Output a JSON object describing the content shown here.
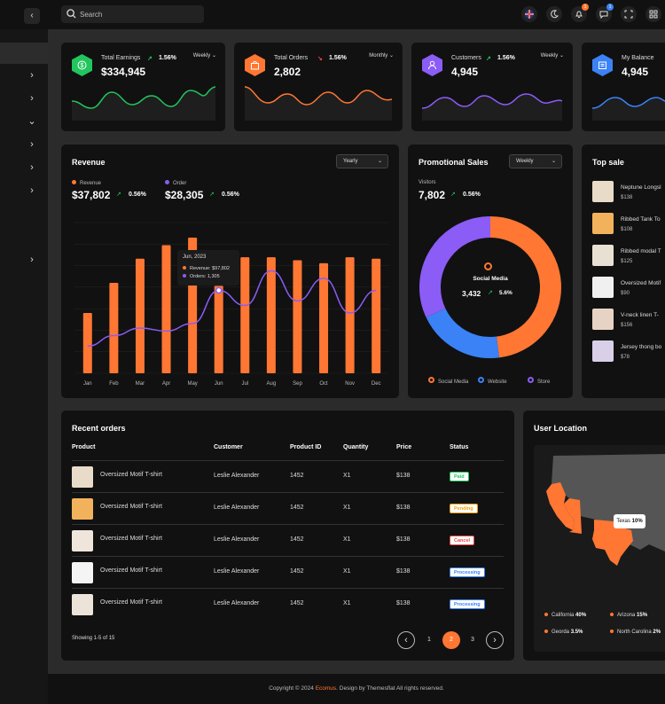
{
  "topbar": {
    "search_placeholder": "Search",
    "icons": [
      {
        "name": "flag-uk-icon",
        "badge": ""
      },
      {
        "name": "moon-icon",
        "badge": ""
      },
      {
        "name": "bell-icon",
        "badge": "1",
        "badge_color": "#ff7733"
      },
      {
        "name": "message-icon",
        "badge": "1",
        "badge_color": "#3b82f6"
      },
      {
        "name": "fullscreen-icon",
        "badge": ""
      },
      {
        "name": "grid-icon",
        "badge": ""
      }
    ]
  },
  "stats": [
    {
      "label": "Total Earnings",
      "value": "$334,945",
      "change": "1.56%",
      "trend": "up",
      "period": "Weekly",
      "color": "#22c55e",
      "icon": "dollar-icon"
    },
    {
      "label": "Total Orders",
      "value": "2,802",
      "change": "1.56%",
      "trend": "down",
      "period": "Monthly",
      "color": "#ff7733",
      "icon": "bag-icon"
    },
    {
      "label": "Customers",
      "value": "4,945",
      "change": "1.56%",
      "trend": "up",
      "period": "Weekly",
      "color": "#8b5cf6",
      "icon": "user-icon"
    },
    {
      "label": "My Balance",
      "value": "4,945",
      "color": "#3b82f6",
      "icon": "wallet-icon"
    }
  ],
  "revenue": {
    "title": "Revenue",
    "period": "Yearly",
    "revenue_label": "Revenue",
    "revenue_value": "$37,802",
    "revenue_change": "0.56%",
    "order_label": "Order",
    "order_value": "$28,305",
    "order_change": "0.56%",
    "tooltip_title": "Jun, 2023",
    "tooltip_revenue": "Revenue: $97,802",
    "tooltip_orders": "Orders: 1,305"
  },
  "chart_data": {
    "type": "bar",
    "categories": [
      "Jan",
      "Feb",
      "Mar",
      "Apr",
      "May",
      "Jun",
      "Jul",
      "Aug",
      "Sep",
      "Oct",
      "Nov",
      "Dec"
    ],
    "series": [
      {
        "type": "bar",
        "color": "#ff7733",
        "values": [
          40,
          60,
          76,
          85,
          90,
          58,
          77,
          77,
          75,
          73,
          77,
          76
        ]
      },
      {
        "type": "line",
        "color": "#8b5cf6",
        "values": [
          18,
          25,
          30,
          28,
          33,
          55,
          45,
          68,
          48,
          63,
          40,
          55
        ]
      }
    ],
    "ylim": [
      0,
      100
    ]
  },
  "promo": {
    "title": "Promotional Sales",
    "period": "Weekly",
    "visitors_label": "Visitors",
    "visitors_value": "7,802",
    "visitors_change": "0.56%",
    "center_label": "Social Media",
    "center_value": "3,432",
    "center_change": "5.6%",
    "legend": [
      "Social Media",
      "Website",
      "Store"
    ],
    "donut": [
      {
        "name": "Social Media",
        "value": 48,
        "color": "#ff7733"
      },
      {
        "name": "Website",
        "value": 20,
        "color": "#3b82f6"
      },
      {
        "name": "Store",
        "value": 32,
        "color": "#8b5cf6"
      }
    ]
  },
  "top_sale": {
    "title": "Top sale",
    "items": [
      {
        "name": "Neptune Longsl",
        "price": "$138"
      },
      {
        "name": "Ribbed Tank To",
        "price": "$108"
      },
      {
        "name": "Ribbed modal T",
        "price": "$125"
      },
      {
        "name": "Oversized Motif",
        "price": "$90"
      },
      {
        "name": "V-neck linen T-",
        "price": "$156"
      },
      {
        "name": "Jersey thong bo",
        "price": "$78"
      }
    ]
  },
  "orders": {
    "title": "Recent orders",
    "columns": [
      "Product",
      "Customer",
      "Product ID",
      "Quantity",
      "Price",
      "Status"
    ],
    "rows": [
      {
        "product": "Oversized Motif T-shirt",
        "customer": "Leslie Alexander",
        "id": "1452",
        "qty": "X1",
        "price": "$138",
        "status": "Paid",
        "status_color": "#22c55e"
      },
      {
        "product": "Oversized Motif T-shirt",
        "customer": "Leslie Alexander",
        "id": "1452",
        "qty": "X1",
        "price": "$138",
        "status": "Pending",
        "status_color": "#f59e0b"
      },
      {
        "product": "Oversized Motif T-shirt",
        "customer": "Leslie Alexander",
        "id": "1452",
        "qty": "X1",
        "price": "$138",
        "status": "Cancel",
        "status_color": "#ef4444"
      },
      {
        "product": "Oversized Motif T-shirt",
        "customer": "Leslie Alexander",
        "id": "1452",
        "qty": "X1",
        "price": "$138",
        "status": "Processing",
        "status_color": "#3b82f6"
      },
      {
        "product": "Oversized Motif T-shirt",
        "customer": "Leslie Alexander",
        "id": "1452",
        "qty": "X1",
        "price": "$138",
        "status": "Processing",
        "status_color": "#3b82f6"
      }
    ],
    "showing": "Showing 1-5 of 15",
    "pages": [
      "1",
      "2",
      "3"
    ],
    "active_page": "2"
  },
  "location": {
    "title": "User Location",
    "tooltip": "Texas",
    "tooltip_value": "10%",
    "legend": [
      {
        "name": "California",
        "value": "40%"
      },
      {
        "name": "Arizona",
        "value": "15%"
      },
      {
        "name": "Georda",
        "value": "3.5%"
      },
      {
        "name": "North Carolina",
        "value": "2%"
      }
    ]
  },
  "footer": {
    "prefix": "Copyright © 2024 ",
    "brand": "Ecomus",
    "suffix": ". Design by Themesflat All rights reserved."
  }
}
